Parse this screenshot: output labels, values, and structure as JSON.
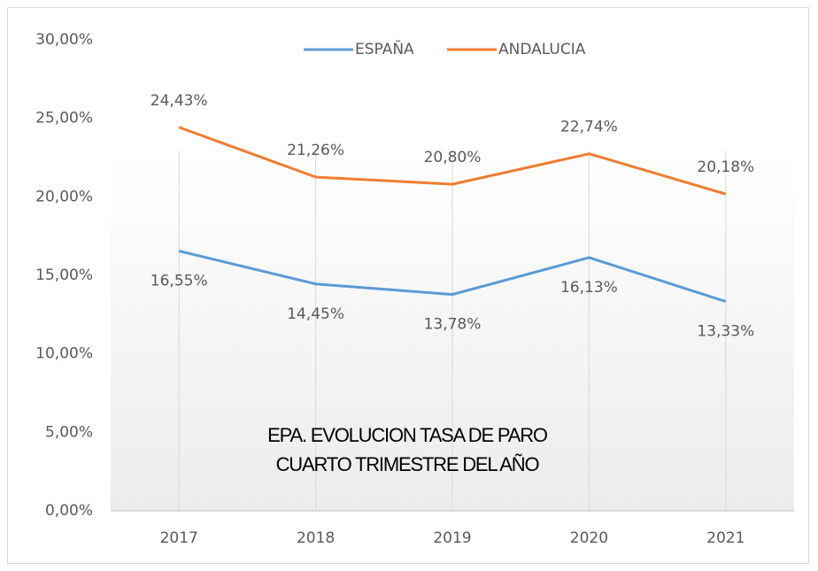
{
  "chart_data": {
    "type": "line",
    "title": "EPA. EVOLUCION TASA DE PARO",
    "subtitle": "CUARTO TRIMESTRE DEL AÑO",
    "categories": [
      "2017",
      "2018",
      "2019",
      "2020",
      "2021"
    ],
    "series": [
      {
        "name": "ESPAÑA",
        "color": "#5b9bd5",
        "values": [
          16.55,
          14.45,
          13.78,
          16.13,
          13.33
        ],
        "value_labels": [
          "16,55%",
          "14,45%",
          "13,78%",
          "16,13%",
          "13,33%"
        ]
      },
      {
        "name": "ANDALUCIA",
        "color": "#ed7d31",
        "values": [
          24.43,
          21.26,
          20.8,
          22.74,
          20.18
        ],
        "value_labels": [
          "24,43%",
          "21,26%",
          "20,80%",
          "22,74%",
          "20,18%"
        ]
      }
    ],
    "ylim": [
      0,
      30
    ],
    "yticks": [
      {
        "value": 0,
        "label": "0,00%"
      },
      {
        "value": 5,
        "label": "5,00%"
      },
      {
        "value": 10,
        "label": "10,00%"
      },
      {
        "value": 15,
        "label": "15,00%"
      },
      {
        "value": 20,
        "label": "20,00%"
      },
      {
        "value": 25,
        "label": "25,00%"
      },
      {
        "value": 30,
        "label": "30,00%"
      }
    ],
    "legend": "top"
  }
}
